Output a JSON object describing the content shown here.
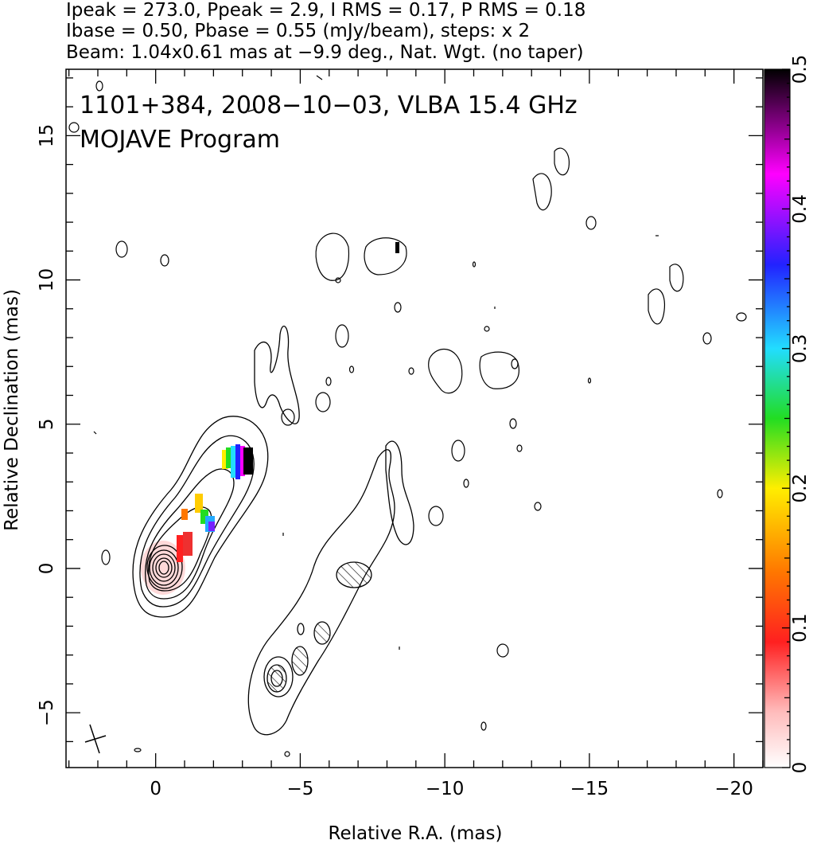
{
  "header": {
    "line1": "Ipeak = 273.0, Ppeak = 2.9, I RMS = 0.17, P RMS = 0.18",
    "line2": "Ibase = 0.50, Pbase = 0.55 (mJy/beam), steps: x 2",
    "line3": "Beam: 1.04x0.61 mas at −9.9 deg., Nat. Wgt. (no taper)"
  },
  "chart_data": {
    "type": "contour",
    "title": "1101+384, 2008−10−03, VLBA 15.4 GHz",
    "subtitle": "MOJAVE Program",
    "xlabel": "Relative R.A. (mas)",
    "ylabel": "Relative Declination (mas)",
    "xlim": [
      3.1,
      -21
    ],
    "ylim": [
      -6.9,
      17.3
    ],
    "x_ticks": [
      0,
      -5,
      -10,
      -15,
      -20
    ],
    "x_tick_labels": [
      "0",
      "−5",
      "−10",
      "−15",
      "−20"
    ],
    "y_ticks": [
      -5,
      0,
      5,
      10,
      15
    ],
    "y_tick_labels": [
      "−5",
      "0",
      "5",
      "10",
      "15"
    ],
    "core_position": [
      0,
      0
    ],
    "jet_direction": "northwest",
    "contour_levels": {
      "base_mJy_per_beam": 0.5,
      "factor": 2,
      "n_levels_on_core": 10
    },
    "colorbar": {
      "range": [
        0,
        0.5
      ],
      "ticks": [
        0,
        0.1,
        0.2,
        0.3,
        0.4,
        0.5
      ],
      "tick_labels": [
        "0",
        "0.1",
        "0.2",
        "0.3",
        "0.4",
        "0.5"
      ],
      "colors": [
        "#ffffff",
        "#ffbbbb",
        "#ff2020",
        "#ff7700",
        "#ffee00",
        "#22dd22",
        "#22ddff",
        "#2222ff",
        "#ff00ff",
        "#000000"
      ]
    },
    "polarization_patches": [
      {
        "x": 0.8,
        "y": 0.8,
        "value": 0.08
      },
      {
        "x": 1.1,
        "y": 1.9,
        "value": 0.15
      },
      {
        "x": 1.5,
        "y": 1.8,
        "value": 0.25
      },
      {
        "x": 2.3,
        "y": 3.7,
        "value": 0.32
      },
      {
        "x": 2.8,
        "y": 3.8,
        "value": 0.45
      }
    ]
  }
}
